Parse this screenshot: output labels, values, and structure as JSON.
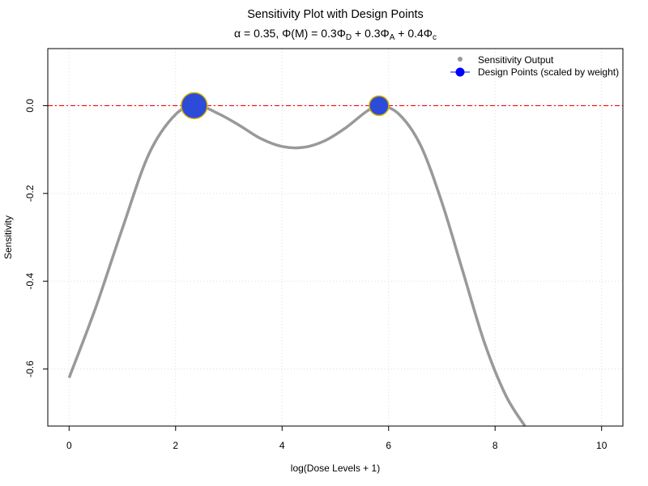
{
  "chart_data": {
    "type": "line",
    "title": "Sensitivity Plot with Design Points",
    "subtitle": {
      "alpha_symbol": "α",
      "alpha_text": " = 0.35, ",
      "phi": "Φ",
      "paren_open": "(",
      "m": "M",
      "paren_close": ")",
      "eq": " = 0.3",
      "sub_d": "D",
      "plus1": " + 0.3",
      "sub_a": "A",
      "plus2": " + 0.4",
      "sub_c": "c"
    },
    "xlabel": "log(Dose Levels + 1)",
    "ylabel": "Sensitivity",
    "xlim": [
      -0.4,
      10.4
    ],
    "ylim": [
      -0.73,
      0.13
    ],
    "x_ticks": [
      0,
      2,
      4,
      6,
      8,
      10
    ],
    "x_tick_labels": [
      "0",
      "2",
      "4",
      "6",
      "8",
      "10"
    ],
    "y_ticks": [
      0.0,
      -0.2,
      -0.4,
      -0.6
    ],
    "y_tick_labels": [
      "0.0",
      "-0.2",
      "-0.4",
      "-0.6"
    ],
    "grid": true,
    "legend_position": "top-right",
    "series": [
      {
        "name": "Sensitivity Output",
        "color": "#999999",
        "x": [
          0.0,
          0.5,
          1.0,
          1.5,
          2.0,
          2.4,
          2.8,
          3.2,
          3.6,
          4.0,
          4.4,
          4.8,
          5.2,
          5.6,
          5.85,
          6.2,
          6.6,
          7.0,
          7.4,
          7.8,
          8.2,
          8.56
        ],
        "y": [
          -0.62,
          -0.46,
          -0.28,
          -0.11,
          -0.02,
          0.0,
          -0.018,
          -0.045,
          -0.075,
          -0.093,
          -0.095,
          -0.08,
          -0.05,
          -0.012,
          0.0,
          -0.02,
          -0.09,
          -0.22,
          -0.38,
          -0.54,
          -0.66,
          -0.73
        ]
      }
    ],
    "design_points": {
      "name": "Design Points (scaled by weight)",
      "fill": "#2B4BD8",
      "stroke": "#D4B000",
      "legend_fill": "#0000FF",
      "points": [
        {
          "x": 2.35,
          "y": 0.0,
          "weight": 0.6
        },
        {
          "x": 5.82,
          "y": 0.0,
          "weight": 0.4
        }
      ]
    },
    "reference_line": {
      "y": 0.0,
      "color": "#FF0000",
      "style": "dashed"
    }
  }
}
